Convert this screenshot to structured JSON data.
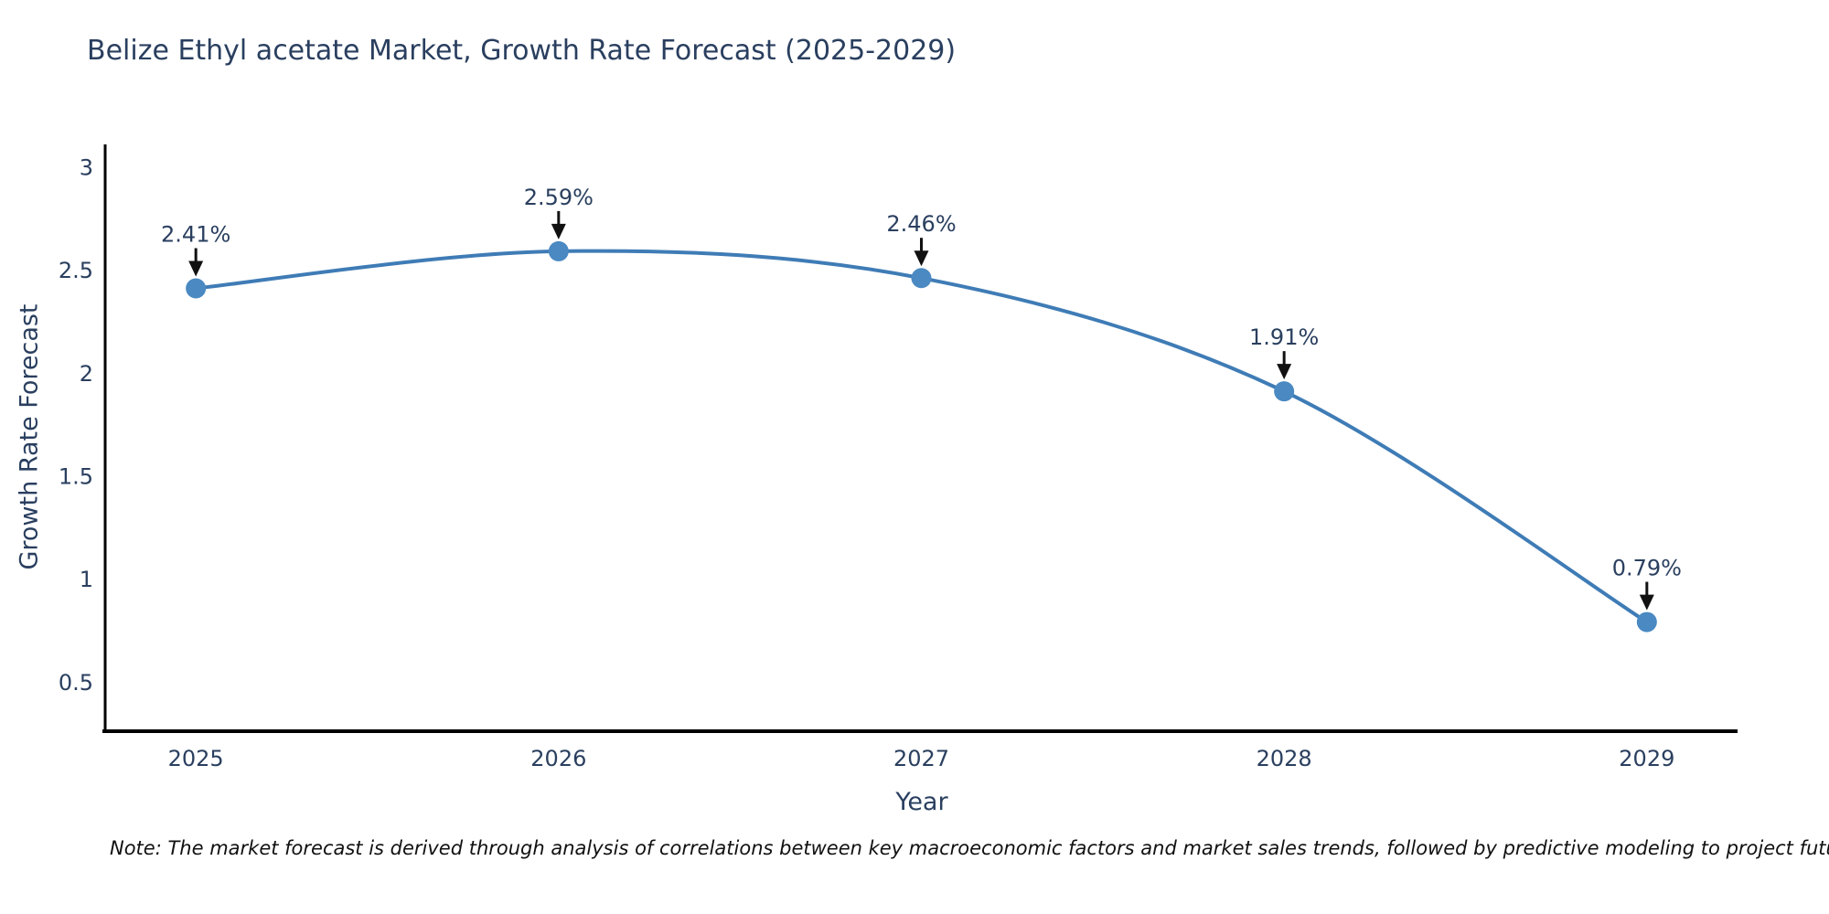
{
  "page": {
    "background": "#ffffff"
  },
  "chart_data": {
    "type": "line",
    "title": "Belize Ethyl acetate Market, Growth Rate Forecast (2025-2029)",
    "xlabel": "Year",
    "ylabel": "Growth Rate Forecast",
    "x": [
      2025,
      2026,
      2027,
      2028,
      2029
    ],
    "series": [
      {
        "name": "Growth Rate Forecast",
        "values": [
          2.41,
          2.59,
          2.46,
          1.91,
          0.79
        ],
        "point_labels": [
          "2.41%",
          "2.59%",
          "2.46%",
          "1.91%",
          "0.79%"
        ]
      }
    ],
    "xticks": [
      2025,
      2026,
      2027,
      2028,
      2029
    ],
    "yticks": [
      0.5,
      1,
      1.5,
      2,
      2.5,
      3
    ],
    "xlim": [
      2024.75,
      2029.25
    ],
    "ylim": [
      0.26,
      3.1
    ],
    "grid": false,
    "legend_position": "none",
    "line_shape": "spline",
    "colors": {
      "line": "#3f7cb6",
      "marker": "#4a89c2",
      "axis_line": "#000000",
      "text": "#2a3f5f",
      "annotation_text": "#2a3f5f",
      "annotation_arrow": "#111111"
    }
  },
  "note": {
    "text": "Note: The market forecast is derived through analysis of correlations between key macroeconomic factors and market sales trends, followed by predictive modeling to project future sales"
  }
}
